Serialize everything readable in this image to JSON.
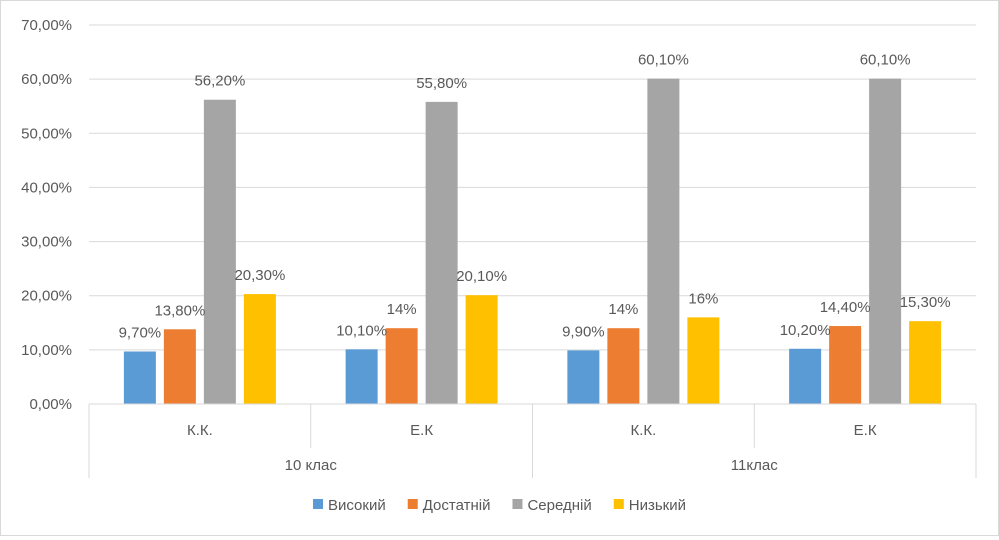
{
  "chart_data": {
    "type": "bar",
    "groups": [
      {
        "label": "10 клас",
        "categories": [
          "К.К.",
          "Е.К"
        ]
      },
      {
        "label": "11клас",
        "categories": [
          "К.К.",
          "Е.К"
        ]
      }
    ],
    "series": [
      {
        "name": "Високий",
        "color": "#5b9bd5",
        "values": [
          9.7,
          10.1,
          9.9,
          10.2
        ],
        "labels": [
          "9,70%",
          "10,10%",
          "9,90%",
          "10,20%"
        ]
      },
      {
        "name": "Достатній",
        "color": "#ed7d31",
        "values": [
          13.8,
          14,
          14,
          14.4
        ],
        "labels": [
          "13,80%",
          "14%",
          "14%",
          "14,40%"
        ]
      },
      {
        "name": "Середній",
        "color": "#a5a5a5",
        "values": [
          56.2,
          55.8,
          60.1,
          60.1
        ],
        "labels": [
          "56,20%",
          "55,80%",
          "60,10%",
          "60,10%"
        ]
      },
      {
        "name": "Низький",
        "color": "#ffc000",
        "values": [
          20.3,
          20.1,
          16,
          15.3
        ],
        "labels": [
          "20,30%",
          "20,10%",
          "16%",
          "15,30%"
        ]
      }
    ],
    "ylim": [
      0,
      70
    ],
    "yticks": [
      "0,00%",
      "10,00%",
      "20,00%",
      "30,00%",
      "40,00%",
      "50,00%",
      "60,00%",
      "70,00%"
    ],
    "grid": true,
    "legend": "bottom"
  }
}
